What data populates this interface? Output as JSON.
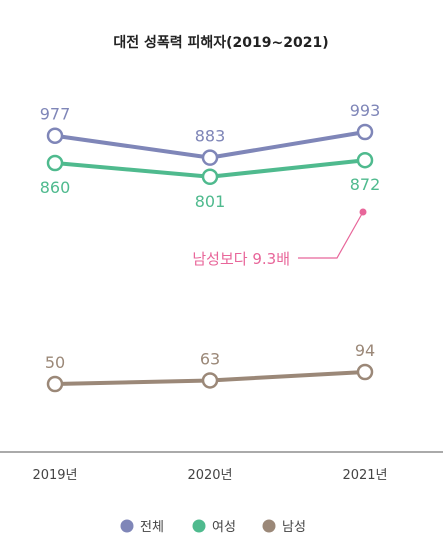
{
  "chart_data": {
    "type": "line",
    "title": "대전 성폭력 피해자(2019~2021)",
    "categories": [
      "2019년",
      "2020년",
      "2021년"
    ],
    "series": [
      {
        "name": "전체",
        "values": [
          977,
          883,
          993
        ],
        "color": "#7f86b8"
      },
      {
        "name": "여성",
        "values": [
          860,
          801,
          872
        ],
        "color": "#4fba8e"
      },
      {
        "name": "남성",
        "values": [
          50,
          63,
          94
        ],
        "color": "#9b8878"
      }
    ],
    "annotation": {
      "text": "남성보다 9.3배",
      "color": "#e8669a"
    },
    "legend_position": "bottom",
    "grid": false
  }
}
